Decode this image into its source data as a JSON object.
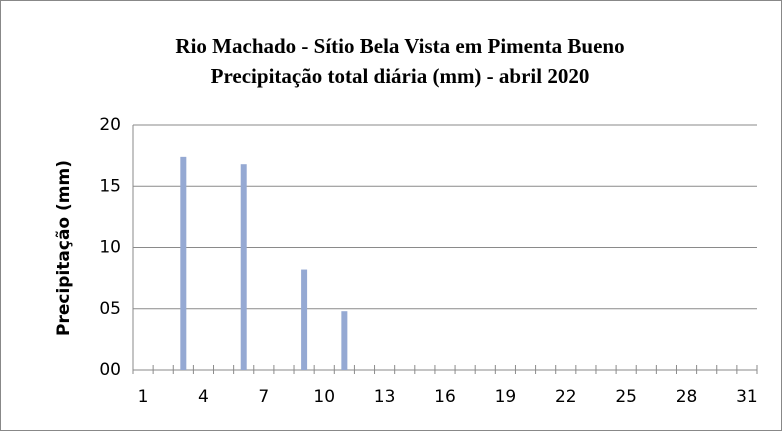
{
  "chart_data": {
    "type": "bar",
    "title": "Rio Machado - Sítio Bela Vista em Pimenta Bueno",
    "subtitle": "Precipitação total diária (mm) - abril  2020",
    "y_label": "Precipitação (mm)",
    "categories": [
      "1",
      null,
      null,
      "4",
      null,
      null,
      "7",
      null,
      null,
      "10",
      null,
      null,
      "13",
      null,
      null,
      "16",
      null,
      null,
      "19",
      null,
      null,
      "22",
      null,
      null,
      "25",
      null,
      null,
      "28",
      null,
      null,
      "31"
    ],
    "values": [
      0,
      0,
      17.4,
      0,
      0,
      16.8,
      0,
      0,
      8.2,
      0,
      4.8,
      0,
      0,
      0,
      0,
      0,
      0,
      0,
      0,
      0,
      0,
      0,
      0,
      0,
      0,
      0,
      0,
      0,
      0,
      0,
      0
    ],
    "color": "#95a9d3",
    "ylim": [
      0,
      20
    ],
    "yticks": [
      {
        "value": 0,
        "label": "00"
      },
      {
        "value": 5,
        "label": "05"
      },
      10,
      15,
      20
    ],
    "grid": true
  }
}
